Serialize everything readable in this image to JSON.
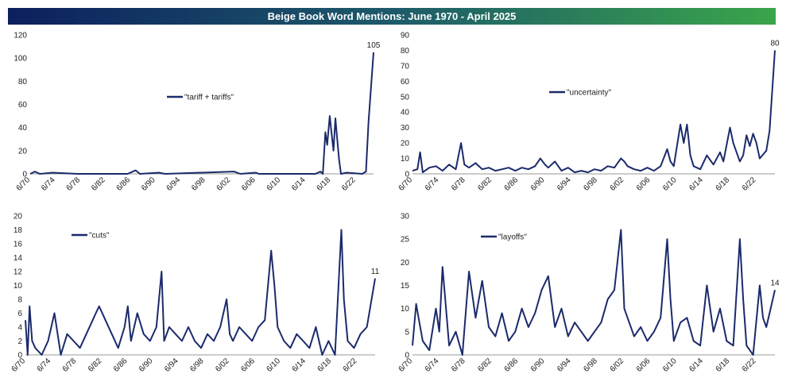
{
  "header": {
    "title": "Beige Book Word Mentions: June 1970 - April 2025"
  },
  "colors": {
    "line": "#1b2a6b",
    "title_bar_start": "#0c1f5e",
    "title_bar_end": "#3aa54a"
  },
  "x_tick_labels": [
    "6/70",
    "6/74",
    "6/78",
    "6/82",
    "6/86",
    "6/90",
    "6/94",
    "6/98",
    "6/02",
    "6/06",
    "6/10",
    "6/14",
    "6/18",
    "6/22"
  ],
  "chart_data": [
    {
      "type": "line",
      "series": [
        {
          "name": "\"tariff + tariffs\"",
          "points": [
            [
              1970.45,
              0
            ],
            [
              1971.2,
              2
            ],
            [
              1972,
              0
            ],
            [
              1974,
              1
            ],
            [
              1978,
              0
            ],
            [
              1986,
              0
            ],
            [
              1987.3,
              3
            ],
            [
              1988,
              0
            ],
            [
              1991,
              1
            ],
            [
              1992,
              0
            ],
            [
              2003,
              2
            ],
            [
              2004,
              0
            ],
            [
              2006.5,
              1
            ],
            [
              2007,
              0
            ],
            [
              2016,
              0
            ],
            [
              2016.8,
              2
            ],
            [
              2017.2,
              0
            ],
            [
              2017.6,
              36
            ],
            [
              2017.9,
              25
            ],
            [
              2018.3,
              50
            ],
            [
              2018.6,
              35
            ],
            [
              2018.9,
              20
            ],
            [
              2019.2,
              48
            ],
            [
              2019.5,
              30
            ],
            [
              2019.8,
              12
            ],
            [
              2020.1,
              0
            ],
            [
              2021,
              1
            ],
            [
              2023.5,
              0
            ],
            [
              2024.1,
              2
            ],
            [
              2024.5,
              45
            ],
            [
              2025.3,
              105
            ]
          ]
        }
      ],
      "y_ticks": [
        0,
        20,
        40,
        60,
        80,
        100,
        120
      ],
      "ylim": [
        0,
        120
      ],
      "end_label": "105"
    },
    {
      "type": "line",
      "series": [
        {
          "name": "\"uncertainty\"",
          "points": [
            [
              1970.45,
              2
            ],
            [
              1971.2,
              3
            ],
            [
              1971.6,
              14
            ],
            [
              1972,
              1
            ],
            [
              1973,
              4
            ],
            [
              1974,
              5
            ],
            [
              1975,
              2
            ],
            [
              1976,
              6
            ],
            [
              1977,
              3
            ],
            [
              1977.8,
              20
            ],
            [
              1978.3,
              6
            ],
            [
              1979,
              4
            ],
            [
              1980,
              7
            ],
            [
              1981,
              3
            ],
            [
              1982,
              4
            ],
            [
              1983,
              2
            ],
            [
              1984,
              3
            ],
            [
              1985,
              4
            ],
            [
              1986,
              2
            ],
            [
              1987,
              4
            ],
            [
              1988,
              3
            ],
            [
              1989,
              5
            ],
            [
              1989.8,
              10
            ],
            [
              1990.5,
              6
            ],
            [
              1991,
              4
            ],
            [
              1992,
              8
            ],
            [
              1993,
              2
            ],
            [
              1994,
              4
            ],
            [
              1995,
              1
            ],
            [
              1996,
              2
            ],
            [
              1997,
              1
            ],
            [
              1998,
              3
            ],
            [
              1999,
              2
            ],
            [
              2000,
              5
            ],
            [
              2001,
              4
            ],
            [
              2002,
              10
            ],
            [
              2002.5,
              8
            ],
            [
              2003,
              5
            ],
            [
              2004,
              3
            ],
            [
              2005,
              2
            ],
            [
              2006,
              4
            ],
            [
              2007,
              2
            ],
            [
              2008,
              5
            ],
            [
              2009,
              16
            ],
            [
              2009.5,
              8
            ],
            [
              2010,
              5
            ],
            [
              2011,
              32
            ],
            [
              2011.5,
              20
            ],
            [
              2012,
              32
            ],
            [
              2012.5,
              12
            ],
            [
              2013,
              5
            ],
            [
              2014,
              3
            ],
            [
              2015,
              12
            ],
            [
              2016,
              6
            ],
            [
              2017,
              14
            ],
            [
              2017.5,
              8
            ],
            [
              2018.5,
              30
            ],
            [
              2019,
              20
            ],
            [
              2020,
              8
            ],
            [
              2020.5,
              12
            ],
            [
              2021,
              25
            ],
            [
              2021.5,
              18
            ],
            [
              2022,
              26
            ],
            [
              2022.5,
              20
            ],
            [
              2023,
              10
            ],
            [
              2024,
              15
            ],
            [
              2024.5,
              28
            ],
            [
              2025.3,
              80
            ]
          ]
        }
      ],
      "y_ticks": [
        0,
        10,
        20,
        30,
        40,
        50,
        60,
        70,
        80,
        90
      ],
      "ylim": [
        0,
        90
      ],
      "end_label": "80"
    },
    {
      "type": "line",
      "series": [
        {
          "name": "\"cuts\"",
          "points": [
            [
              1970.45,
              5
            ],
            [
              1970.8,
              0
            ],
            [
              1971.1,
              7
            ],
            [
              1971.5,
              2
            ],
            [
              1972,
              1
            ],
            [
              1973,
              0
            ],
            [
              1974,
              2
            ],
            [
              1975,
              6
            ],
            [
              1976,
              0
            ],
            [
              1977,
              3
            ],
            [
              1978,
              2
            ],
            [
              1979,
              1
            ],
            [
              1980,
              3
            ],
            [
              1981,
              5
            ],
            [
              1981.5,
              6
            ],
            [
              1982,
              7
            ],
            [
              1983,
              5
            ],
            [
              1984,
              3
            ],
            [
              1985,
              1
            ],
            [
              1986,
              4
            ],
            [
              1986.5,
              7
            ],
            [
              1987,
              2
            ],
            [
              1988,
              6
            ],
            [
              1989,
              3
            ],
            [
              1990,
              2
            ],
            [
              1991,
              4
            ],
            [
              1991.8,
              12
            ],
            [
              1992.2,
              2
            ],
            [
              1993,
              4
            ],
            [
              1994,
              3
            ],
            [
              1995,
              2
            ],
            [
              1996,
              4
            ],
            [
              1997,
              2
            ],
            [
              1998,
              1
            ],
            [
              1999,
              3
            ],
            [
              2000,
              2
            ],
            [
              2001,
              4
            ],
            [
              2002,
              8
            ],
            [
              2002.5,
              3
            ],
            [
              2003,
              2
            ],
            [
              2004,
              4
            ],
            [
              2005,
              3
            ],
            [
              2006,
              2
            ],
            [
              2007,
              4
            ],
            [
              2008,
              5
            ],
            [
              2009,
              15
            ],
            [
              2009.5,
              10
            ],
            [
              2010,
              4
            ],
            [
              2011,
              2
            ],
            [
              2012,
              1
            ],
            [
              2013,
              3
            ],
            [
              2014,
              2
            ],
            [
              2015,
              1
            ],
            [
              2016,
              4
            ],
            [
              2017,
              0
            ],
            [
              2018,
              2
            ],
            [
              2019,
              0
            ],
            [
              2020,
              18
            ],
            [
              2020.4,
              8
            ],
            [
              2021,
              2
            ],
            [
              2022,
              1
            ],
            [
              2023,
              3
            ],
            [
              2024,
              4
            ],
            [
              2025.3,
              11
            ]
          ]
        }
      ],
      "y_ticks": [
        0,
        2,
        4,
        6,
        8,
        10,
        12,
        14,
        16,
        18,
        20
      ],
      "ylim": [
        0,
        20
      ],
      "end_label": "11"
    },
    {
      "type": "line",
      "series": [
        {
          "name": "\"layoffs\"",
          "points": [
            [
              1970.45,
              2
            ],
            [
              1971,
              11
            ],
            [
              1971.5,
              7
            ],
            [
              1972,
              3
            ],
            [
              1973,
              1
            ],
            [
              1974,
              10
            ],
            [
              1974.5,
              5
            ],
            [
              1975,
              19
            ],
            [
              1976,
              2
            ],
            [
              1977,
              5
            ],
            [
              1978,
              0
            ],
            [
              1979,
              18
            ],
            [
              1980,
              8
            ],
            [
              1981,
              16
            ],
            [
              1982,
              6
            ],
            [
              1983,
              4
            ],
            [
              1984,
              9
            ],
            [
              1985,
              3
            ],
            [
              1986,
              5
            ],
            [
              1987,
              10
            ],
            [
              1988,
              6
            ],
            [
              1989,
              9
            ],
            [
              1990,
              14
            ],
            [
              1991,
              17
            ],
            [
              1992,
              6
            ],
            [
              1993,
              10
            ],
            [
              1994,
              4
            ],
            [
              1995,
              7
            ],
            [
              1996,
              5
            ],
            [
              1997,
              3
            ],
            [
              1998,
              5
            ],
            [
              1999,
              7
            ],
            [
              2000,
              12
            ],
            [
              2001,
              14
            ],
            [
              2002,
              27
            ],
            [
              2002.5,
              10
            ],
            [
              2003,
              8
            ],
            [
              2004,
              4
            ],
            [
              2005,
              6
            ],
            [
              2006,
              3
            ],
            [
              2007,
              5
            ],
            [
              2008,
              8
            ],
            [
              2009,
              25
            ],
            [
              2009.5,
              12
            ],
            [
              2010,
              3
            ],
            [
              2011,
              7
            ],
            [
              2012,
              8
            ],
            [
              2013,
              3
            ],
            [
              2014,
              2
            ],
            [
              2015,
              15
            ],
            [
              2016,
              5
            ],
            [
              2017,
              10
            ],
            [
              2018,
              3
            ],
            [
              2019,
              2
            ],
            [
              2020,
              25
            ],
            [
              2020.5,
              12
            ],
            [
              2021,
              2
            ],
            [
              2022,
              0
            ],
            [
              2023,
              15
            ],
            [
              2023.5,
              8
            ],
            [
              2024,
              6
            ],
            [
              2024.5,
              9
            ],
            [
              2025.3,
              14
            ]
          ]
        }
      ],
      "y_ticks": [
        0,
        5,
        10,
        15,
        20,
        25,
        30
      ],
      "ylim": [
        0,
        30
      ],
      "end_label": "14"
    }
  ]
}
